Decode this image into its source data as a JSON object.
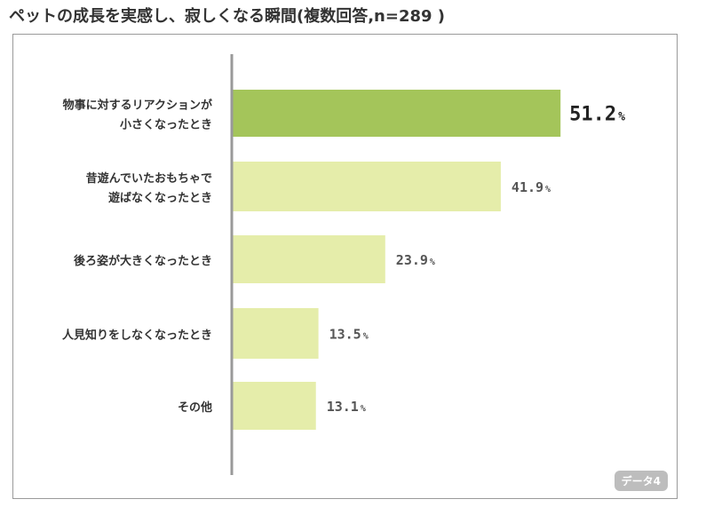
{
  "page": {
    "title": "ペットの成長を実感し、寂しくなる瞬間(複数回答,n=289 )"
  },
  "badge": "データ4",
  "colors": {
    "highlight_bar": "#a4c55a",
    "bar": "#e5edaa",
    "axis": "#999999",
    "label_text": "#333333",
    "value_text": "#555555"
  },
  "chart_data": {
    "type": "bar",
    "orientation": "horizontal",
    "title": "",
    "categories": [
      [
        "物事に対するリアクションが",
        "小さくなったとき"
      ],
      [
        "昔遊んでいたおもちゃで",
        "遊ばなくなったとき"
      ],
      [
        "後ろ姿が大きくなったとき"
      ],
      [
        "人見知りをしなくなったとき"
      ],
      [
        "その他"
      ]
    ],
    "values": [
      51.2,
      41.9,
      23.9,
      13.5,
      13.1
    ],
    "value_labels": [
      "51.2",
      "41.9",
      "23.9",
      "13.5",
      "13.1"
    ],
    "unit": "%",
    "highlight_index": 0,
    "xlim": [
      0,
      60
    ],
    "grid": false,
    "legend": false
  }
}
